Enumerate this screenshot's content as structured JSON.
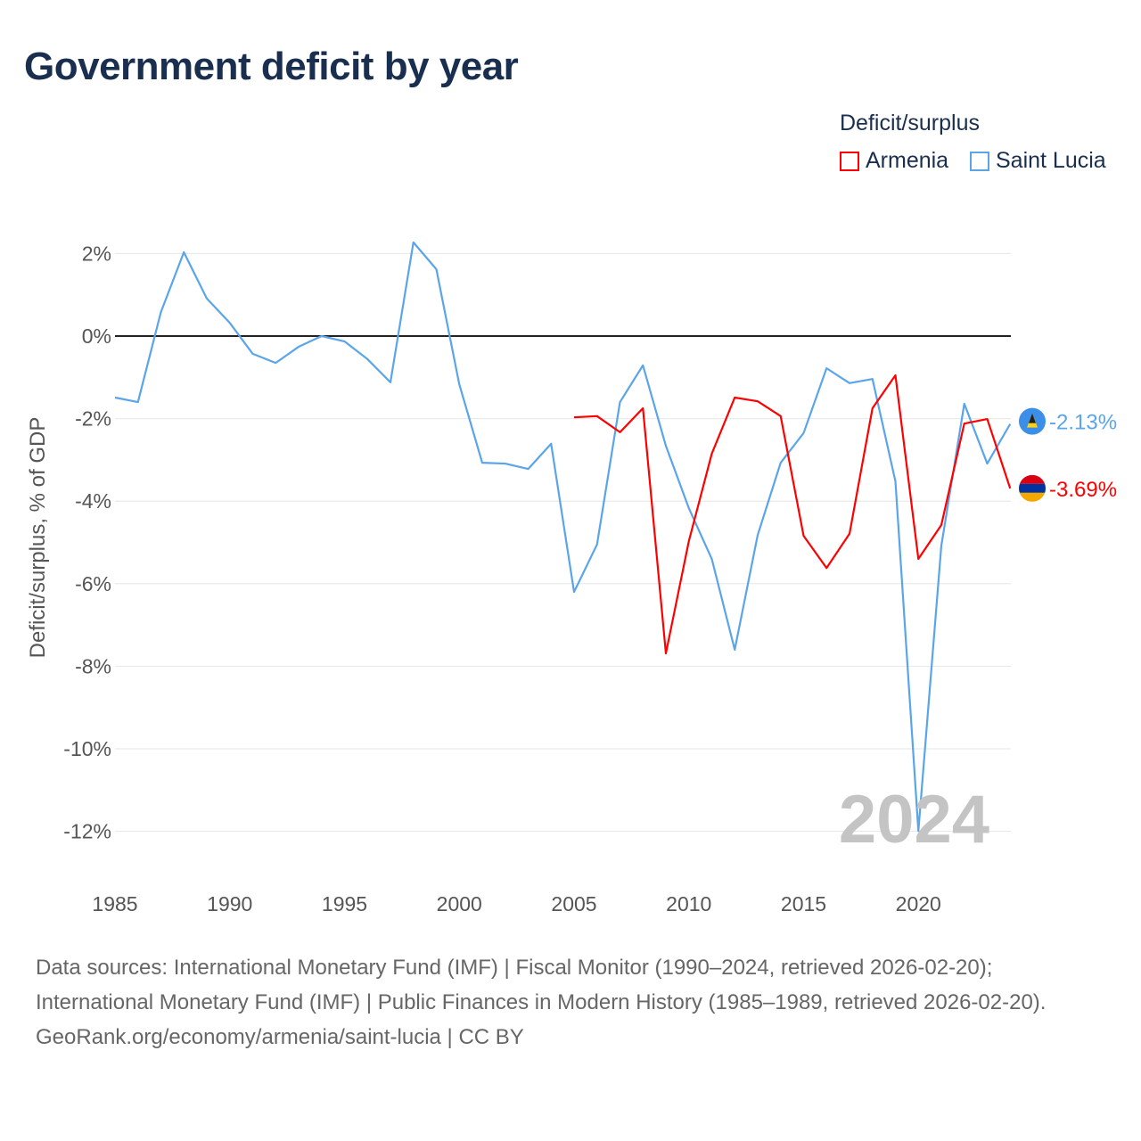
{
  "title": "Government deficit by year",
  "legend": {
    "title": "Deficit/surplus",
    "items": [
      {
        "label": "Armenia",
        "color": "#ff0000"
      },
      {
        "label": "Saint Lucia",
        "color": "#5aa5ea"
      }
    ]
  },
  "year_watermark": "2024",
  "footer": {
    "sources": "Data sources: International Monetary Fund (IMF) | Fiscal Monitor (1990–2024, retrieved 2026-02-20); International Monetary Fund (IMF) | Public Finances in Modern History (1985–1989, retrieved 2026-02-20).",
    "credit": "GeoRank.org/economy/armenia/saint-lucia | CC BY"
  },
  "chart_data": {
    "type": "line",
    "title": "Government deficit by year",
    "xlabel": "",
    "ylabel": "Deficit/surplus, % of GDP",
    "xlim": [
      1985,
      2024
    ],
    "ylim": [
      -13,
      3
    ],
    "xticks": [
      1985,
      1990,
      1995,
      2000,
      2005,
      2010,
      2015,
      2020
    ],
    "yticks": [
      2,
      0,
      -2,
      -4,
      -6,
      -8,
      -10,
      -12
    ],
    "ytick_labels": [
      "2%",
      "0%",
      "-2%",
      "-4%",
      "-6%",
      "-8%",
      "-10%",
      "-12%"
    ],
    "grid": true,
    "legend_position": "top-right",
    "series": [
      {
        "name": "Saint Lucia",
        "color": "#5aa5ea",
        "end_label": "-2.13%",
        "start_year": 1985,
        "values": [
          -1.49,
          -1.6,
          0.58,
          2.03,
          0.91,
          0.32,
          -0.43,
          -0.65,
          -0.26,
          0.0,
          -0.13,
          -0.56,
          -1.12,
          2.27,
          1.62,
          -1.17,
          -3.07,
          -3.09,
          -3.22,
          -2.61,
          -6.2,
          -5.05,
          -1.6,
          -0.71,
          -2.66,
          -4.17,
          -5.4,
          -7.6,
          -4.82,
          -3.07,
          -2.35,
          -0.78,
          -1.14,
          -1.04,
          -3.52,
          -11.99,
          -5.08,
          -1.64,
          -3.09,
          -2.13
        ]
      },
      {
        "name": "Armenia",
        "color": "#ff0000",
        "end_label": "-3.69%",
        "start_year": 2005,
        "values": [
          -1.97,
          -1.94,
          -2.33,
          -1.75,
          -7.69,
          -4.97,
          -2.85,
          -1.49,
          -1.58,
          -1.94,
          -4.84,
          -5.62,
          -4.79,
          -1.75,
          -0.95,
          -5.4,
          -4.58,
          -2.12,
          -2.01,
          -3.69
        ]
      }
    ]
  }
}
